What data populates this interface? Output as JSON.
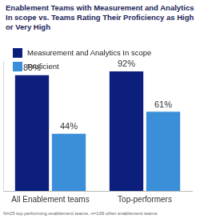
{
  "chart_data": {
    "type": "bar",
    "title": "Enablement Teams with Measurement and Analytics In scope vs. Teams Rating Their Proficiency as High or Very High",
    "categories": [
      "All Enablement teams",
      "Top-performers"
    ],
    "series": [
      {
        "name": "Measurement and Analytics In scope",
        "color": "#0d1f7c",
        "values": [
          89,
          92
        ],
        "value_labels": [
          "89%",
          "92%"
        ]
      },
      {
        "name": "Proficient",
        "color": "#3b8fd9",
        "values": [
          44,
          61
        ],
        "value_labels": [
          "44%",
          "61%"
        ]
      }
    ],
    "ylim": [
      0,
      100
    ],
    "grid": false,
    "legend": "top-left",
    "data_labels": true,
    "tick_labels": "x",
    "footnote": "N=25 top performing enablement teams, n=109 other enablement teams"
  }
}
